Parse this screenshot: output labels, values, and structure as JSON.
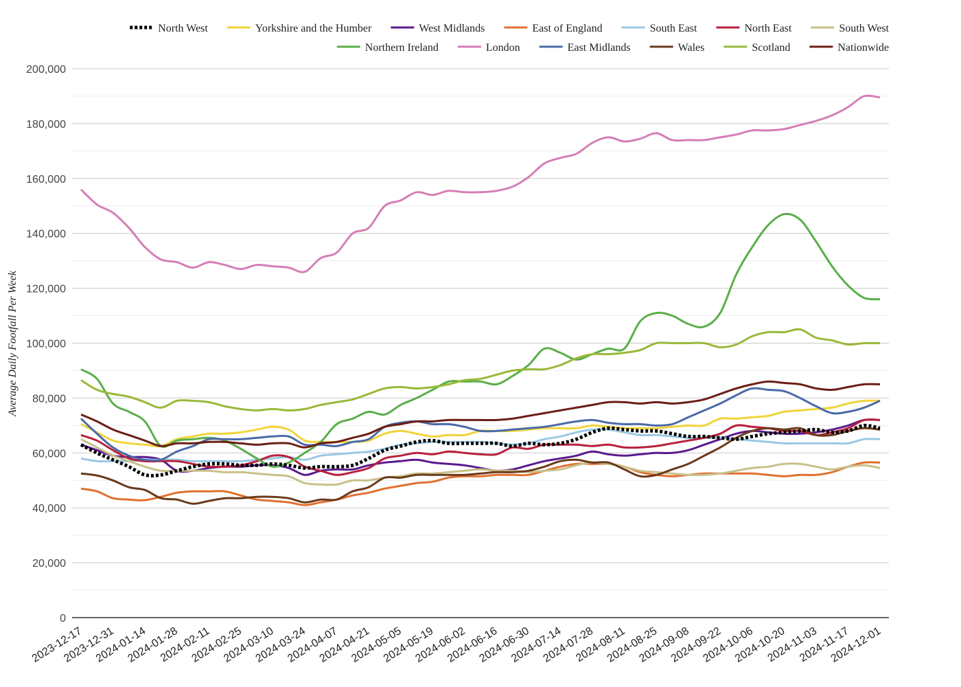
{
  "chart_data": {
    "type": "line",
    "title": "",
    "xlabel": "",
    "ylabel": "Average Daily Footfall Per Week",
    "ylim": [
      0,
      200000
    ],
    "yticks": [
      0,
      20000,
      40000,
      60000,
      80000,
      100000,
      120000,
      140000,
      160000,
      180000,
      200000
    ],
    "ytick_labels": [
      "0",
      "20,000",
      "40,000",
      "60,000",
      "80,000",
      "100,000",
      "120,000",
      "140,000",
      "160,000",
      "180,000",
      "200,000"
    ],
    "xtick_labels": [
      "2023-12-17",
      "2023-12-31",
      "2024-01-14",
      "2024-01-28",
      "2024-02-11",
      "2024-02-25",
      "2024-03-10",
      "2024-03-24",
      "2024-04-07",
      "2024-04-21",
      "2024-05-05",
      "2024-05-19",
      "2024-06-02",
      "2024-06-16",
      "2024-06-30",
      "2024-07-14",
      "2024-07-28",
      "2024-08-11",
      "2024-08-25",
      "2024-09-08",
      "2024-09-22",
      "2024-10-06",
      "2024-10-20",
      "2024-11-03",
      "2024-11-17",
      "2024-12-01"
    ],
    "grid": true,
    "legend_position": "top",
    "x": [
      "2023-12-17",
      "2023-12-24",
      "2023-12-31",
      "2024-01-07",
      "2024-01-14",
      "2024-01-21",
      "2024-01-28",
      "2024-02-04",
      "2024-02-11",
      "2024-02-18",
      "2024-02-25",
      "2024-03-03",
      "2024-03-10",
      "2024-03-17",
      "2024-03-24",
      "2024-03-31",
      "2024-04-07",
      "2024-04-14",
      "2024-04-21",
      "2024-04-28",
      "2024-05-05",
      "2024-05-12",
      "2024-05-19",
      "2024-05-26",
      "2024-06-02",
      "2024-06-09",
      "2024-06-16",
      "2024-06-23",
      "2024-06-30",
      "2024-07-07",
      "2024-07-14",
      "2024-07-21",
      "2024-07-28",
      "2024-08-04",
      "2024-08-11",
      "2024-08-18",
      "2024-08-25",
      "2024-09-01",
      "2024-09-08",
      "2024-09-15",
      "2024-09-22",
      "2024-09-29",
      "2024-10-06",
      "2024-10-13",
      "2024-10-20",
      "2024-10-27",
      "2024-11-03",
      "2024-11-10",
      "2024-11-17",
      "2024-11-24",
      "2024-12-01"
    ],
    "series": [
      {
        "name": "North West",
        "color": "#000000",
        "dashed": true,
        "values": [
          63000,
          60000,
          57500,
          55000,
          52000,
          52000,
          53500,
          55000,
          56000,
          56000,
          55500,
          55500,
          56000,
          55500,
          54500,
          55000,
          55000,
          55500,
          58000,
          61000,
          62500,
          64000,
          64500,
          63500,
          63500,
          63500,
          63500,
          62500,
          63500,
          63000,
          63500,
          65000,
          67500,
          69000,
          68500,
          68000,
          68000,
          67000,
          66000,
          66000,
          65500,
          65000,
          66000,
          67000,
          67500,
          68000,
          68500,
          67500,
          68000,
          70000,
          69000
        ]
      },
      {
        "name": "Yorkshire and the Humber",
        "color": "#f0d43a",
        "values": [
          70500,
          67500,
          64500,
          63500,
          63000,
          62500,
          65000,
          66000,
          67000,
          67000,
          67500,
          68500,
          69500,
          68500,
          64500,
          64000,
          64000,
          64000,
          64500,
          67000,
          68000,
          67000,
          66000,
          66500,
          66500,
          68000,
          68000,
          68000,
          68500,
          69000,
          69000,
          69000,
          70000,
          69500,
          69000,
          69000,
          69000,
          69500,
          70000,
          70000,
          72500,
          72500,
          73000,
          73500,
          75000,
          75500,
          76000,
          76500,
          78000,
          79000,
          79000
        ]
      },
      {
        "name": "West Midlands",
        "color": "#5a1a8c",
        "values": [
          63000,
          61000,
          59000,
          58500,
          58500,
          57500,
          53500,
          53500,
          54500,
          55000,
          55000,
          55500,
          55500,
          54500,
          52000,
          53500,
          54000,
          54000,
          55500,
          56500,
          57000,
          57500,
          56500,
          56000,
          55500,
          54500,
          53500,
          54000,
          55500,
          57000,
          58000,
          59000,
          60500,
          59500,
          59000,
          59500,
          60000,
          60000,
          61000,
          63000,
          65000,
          67000,
          68000,
          67500,
          67000,
          67000,
          67500,
          68500,
          70000,
          72000,
          72000
        ]
      },
      {
        "name": "East of England",
        "color": "#e07030",
        "values": [
          47000,
          46000,
          43500,
          43000,
          42800,
          44000,
          45500,
          46000,
          46000,
          46000,
          44500,
          43000,
          42500,
          42000,
          41000,
          42000,
          43000,
          44500,
          45500,
          47000,
          48000,
          49000,
          49500,
          51000,
          51500,
          51500,
          52000,
          52000,
          52000,
          53500,
          55000,
          56000,
          56000,
          56000,
          55000,
          53000,
          52000,
          51500,
          52000,
          52500,
          52500,
          52500,
          52500,
          52000,
          51500,
          52000,
          52000,
          53000,
          55000,
          56500,
          56500
        ]
      },
      {
        "name": "South East",
        "color": "#9ac8e4",
        "values": [
          58000,
          57000,
          57000,
          57000,
          57500,
          57500,
          57500,
          57000,
          57000,
          57000,
          57000,
          57500,
          58000,
          58500,
          57500,
          59000,
          59500,
          60000,
          60500,
          61500,
          63000,
          63500,
          64000,
          64000,
          64000,
          64000,
          63500,
          63000,
          63500,
          65000,
          66000,
          67500,
          68500,
          68500,
          67500,
          66500,
          66500,
          66000,
          65500,
          65500,
          65500,
          65000,
          64500,
          64000,
          63500,
          63500,
          63500,
          63500,
          63500,
          65000,
          65000
        ]
      },
      {
        "name": "North East",
        "color": "#b8203c",
        "values": [
          66500,
          64500,
          61000,
          58000,
          57000,
          57000,
          57000,
          56000,
          55000,
          55000,
          55500,
          57000,
          59000,
          58500,
          55000,
          53500,
          52000,
          53000,
          54500,
          58000,
          59000,
          60000,
          59500,
          60500,
          60000,
          59500,
          59500,
          62000,
          61500,
          63000,
          63000,
          63000,
          62500,
          63000,
          62000,
          62000,
          62500,
          63500,
          64500,
          65500,
          67000,
          70000,
          69500,
          69000,
          68000,
          68000,
          66500,
          67500,
          69000,
          72000,
          72000
        ]
      },
      {
        "name": "South West",
        "color": "#c8c08a",
        "values": [
          65000,
          62000,
          59000,
          57000,
          55000,
          53500,
          53500,
          53500,
          53500,
          53000,
          53000,
          52500,
          52000,
          51500,
          49000,
          48500,
          48500,
          50000,
          50000,
          51000,
          51500,
          52500,
          52500,
          53000,
          53500,
          54000,
          53500,
          53500,
          53000,
          53500,
          54000,
          55500,
          56500,
          56000,
          55000,
          53500,
          53000,
          52500,
          52000,
          52000,
          52500,
          53500,
          54500,
          55000,
          56000,
          56000,
          55000,
          54000,
          55000,
          55500,
          54500
        ]
      },
      {
        "name": "Northern Ireland",
        "color": "#5aae4a",
        "values": [
          90500,
          87000,
          78000,
          75000,
          71500,
          62500,
          64500,
          65000,
          65500,
          64500,
          61500,
          58000,
          55000,
          56500,
          60000,
          64000,
          70500,
          72500,
          75000,
          74000,
          77500,
          80000,
          83000,
          86000,
          86000,
          86000,
          85000,
          88000,
          92000,
          98000,
          96500,
          94000,
          96000,
          98000,
          98000,
          108000,
          111000,
          110000,
          107000,
          106000,
          111000,
          125000,
          135000,
          143000,
          147000,
          145000,
          137000,
          128000,
          121000,
          116500,
          116000
        ]
      },
      {
        "name": "London",
        "color": "#d47fb5",
        "values": [
          156000,
          150500,
          147500,
          142000,
          135000,
          130500,
          129500,
          127500,
          129500,
          128500,
          127000,
          128500,
          128000,
          127500,
          126000,
          131000,
          133000,
          140000,
          142000,
          150000,
          152000,
          155000,
          154000,
          155500,
          155000,
          155000,
          155500,
          157000,
          160500,
          165500,
          167500,
          169000,
          173000,
          175000,
          173500,
          174500,
          176500,
          174000,
          174000,
          174000,
          175000,
          176000,
          177500,
          177500,
          178000,
          179500,
          181000,
          183000,
          186000,
          190000,
          189500
        ]
      },
      {
        "name": "East Midlands",
        "color": "#4a6aa8",
        "values": [
          72500,
          67000,
          62000,
          59000,
          57500,
          57500,
          60500,
          62500,
          65000,
          65000,
          65000,
          65500,
          66000,
          66000,
          63000,
          63000,
          62500,
          64000,
          65000,
          69500,
          71000,
          71500,
          70500,
          70500,
          69500,
          68000,
          68000,
          68500,
          69000,
          69500,
          70500,
          71500,
          72000,
          71000,
          70500,
          70500,
          70000,
          70500,
          73000,
          75500,
          78000,
          81000,
          83500,
          83000,
          82500,
          80000,
          77000,
          74500,
          75000,
          76500,
          79000
        ]
      },
      {
        "name": "Wales",
        "color": "#6a3a1a",
        "values": [
          52500,
          51800,
          50000,
          47500,
          46500,
          43500,
          43000,
          41500,
          42500,
          43500,
          43500,
          44000,
          44000,
          43500,
          42000,
          43000,
          43000,
          46000,
          47500,
          51000,
          51000,
          52000,
          52000,
          52000,
          52000,
          52500,
          53000,
          53000,
          53500,
          55000,
          57000,
          57500,
          56500,
          56500,
          54000,
          51500,
          52000,
          54000,
          56000,
          59000,
          62000,
          65500,
          68000,
          69000,
          68500,
          69000,
          66500,
          66500,
          68000,
          69000,
          68500
        ]
      },
      {
        "name": "Scotland",
        "color": "#9ab83a",
        "values": [
          86500,
          83000,
          81500,
          80500,
          78500,
          76500,
          79000,
          79000,
          78500,
          77000,
          76000,
          75500,
          76000,
          75500,
          76000,
          77500,
          78500,
          79500,
          81500,
          83500,
          84000,
          83500,
          84000,
          85000,
          86500,
          87000,
          88500,
          90000,
          90500,
          90500,
          92000,
          94500,
          96000,
          96000,
          96500,
          97500,
          100000,
          100000,
          100000,
          100000,
          98500,
          99500,
          102500,
          104000,
          104000,
          105000,
          102000,
          101000,
          99500,
          100000,
          100000
        ]
      },
      {
        "name": "Nationwide",
        "color": "#6a1e14",
        "values": [
          74000,
          71500,
          68500,
          66500,
          64500,
          62500,
          63500,
          63500,
          64000,
          64000,
          63500,
          63000,
          63500,
          63500,
          62000,
          63500,
          64000,
          65500,
          67000,
          69500,
          70500,
          71500,
          71500,
          72000,
          72000,
          72000,
          72000,
          72500,
          73500,
          74500,
          75500,
          76500,
          77500,
          78500,
          78500,
          78000,
          78500,
          78000,
          78500,
          79500,
          81500,
          83500,
          85000,
          86000,
          85500,
          85000,
          83500,
          83000,
          84000,
          85000,
          85000
        ]
      }
    ]
  }
}
